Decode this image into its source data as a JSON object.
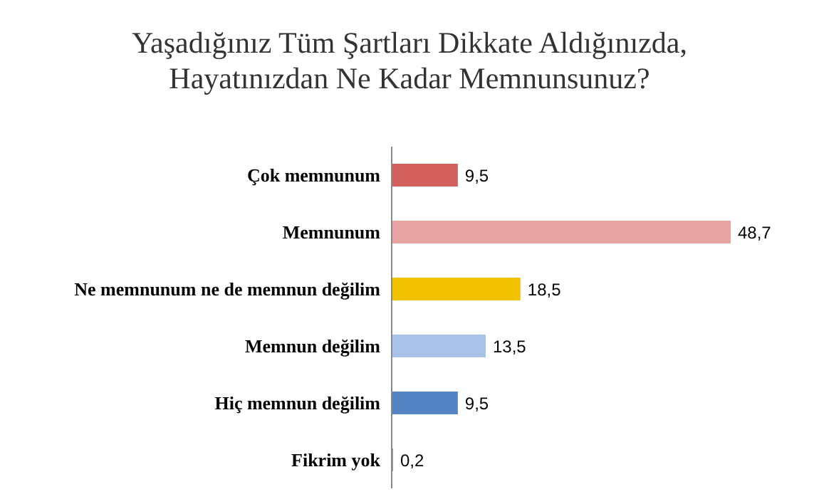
{
  "chart_data": {
    "type": "bar",
    "orientation": "horizontal",
    "title": "Yaşadığınız Tüm Şartları Dikkate Aldığınızda, Hayatınızdan Ne Kadar Memnunsunuz?",
    "categories": [
      "Çok memnunum",
      "Memnunum",
      "Ne memnunum ne de memnun değilim",
      "Memnun değilim",
      "Hiç memnun değilim",
      "Fikrim yok"
    ],
    "values": [
      9.5,
      48.7,
      18.5,
      13.5,
      9.5,
      0.2
    ],
    "value_labels": [
      "9,5",
      "48,7",
      "18,5",
      "13,5",
      "9,5",
      "0,2"
    ],
    "colors": [
      "#d2605c",
      "#e8a3a3",
      "#f2c200",
      "#a9c2e8",
      "#5584c4",
      "#9a9a9a"
    ]
  }
}
